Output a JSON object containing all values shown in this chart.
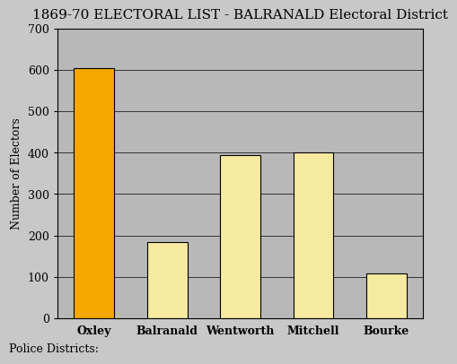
{
  "title": "1869-70 ELECTORAL LIST - BALRANALD Electoral District",
  "categories": [
    "Oxley",
    "Balranald",
    "Wentworth",
    "Mitchell",
    "Bourke"
  ],
  "values": [
    603,
    185,
    395,
    400,
    108
  ],
  "bar_colors": [
    "#F5A800",
    "#F5EAA0",
    "#F5EAA0",
    "#F5EAA0",
    "#F5EAA0"
  ],
  "bar_edgecolor": "#000000",
  "xlabel": "Police Districts:",
  "ylabel": "Number of Electors",
  "ylim": [
    0,
    700
  ],
  "yticks": [
    0,
    100,
    200,
    300,
    400,
    500,
    600,
    700
  ],
  "background_color": "#C8C8C8",
  "plot_bg_color": "#B8B8B8",
  "title_fontsize": 11,
  "axis_label_fontsize": 9,
  "tick_fontsize": 9,
  "bar_width": 0.55
}
